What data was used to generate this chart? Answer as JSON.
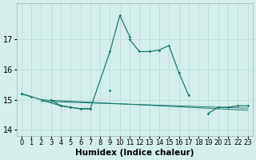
{
  "xlabel": "Humidex (Indice chaleur)",
  "x": [
    0,
    1,
    2,
    3,
    4,
    5,
    6,
    7,
    8,
    9,
    10,
    11,
    12,
    13,
    14,
    15,
    16,
    17,
    18,
    19,
    20,
    21,
    22,
    23
  ],
  "s1_y": [
    15.2,
    15.1,
    null,
    15.0,
    14.8,
    14.75,
    14.7,
    14.7,
    null,
    15.3,
    null,
    17.0,
    16.6,
    16.6,
    16.65,
    16.8,
    15.9,
    15.15,
    null,
    14.55,
    14.75,
    14.75,
    14.8,
    14.8
  ],
  "s2_x": [
    0,
    4,
    5,
    6,
    7,
    9,
    10,
    11
  ],
  "s2_y": [
    15.2,
    14.8,
    14.75,
    14.7,
    14.7,
    16.6,
    17.8,
    17.1
  ],
  "trend1_x": [
    2,
    23
  ],
  "trend1_y": [
    15.0,
    14.65
  ],
  "trend2_x": [
    2,
    23
  ],
  "trend2_y": [
    14.95,
    14.72
  ],
  "ylim": [
    13.8,
    18.2
  ],
  "yticks": [
    14,
    15,
    16,
    17
  ],
  "xticks": [
    0,
    1,
    2,
    3,
    4,
    5,
    6,
    7,
    8,
    9,
    10,
    11,
    12,
    13,
    14,
    15,
    16,
    17,
    18,
    19,
    20,
    21,
    22,
    23
  ],
  "line_color": "#1a7a6e",
  "bg_color": "#d4eeec",
  "grid_color": "#b8d8d6",
  "tick_fontsize": 6,
  "label_fontsize": 7.5
}
